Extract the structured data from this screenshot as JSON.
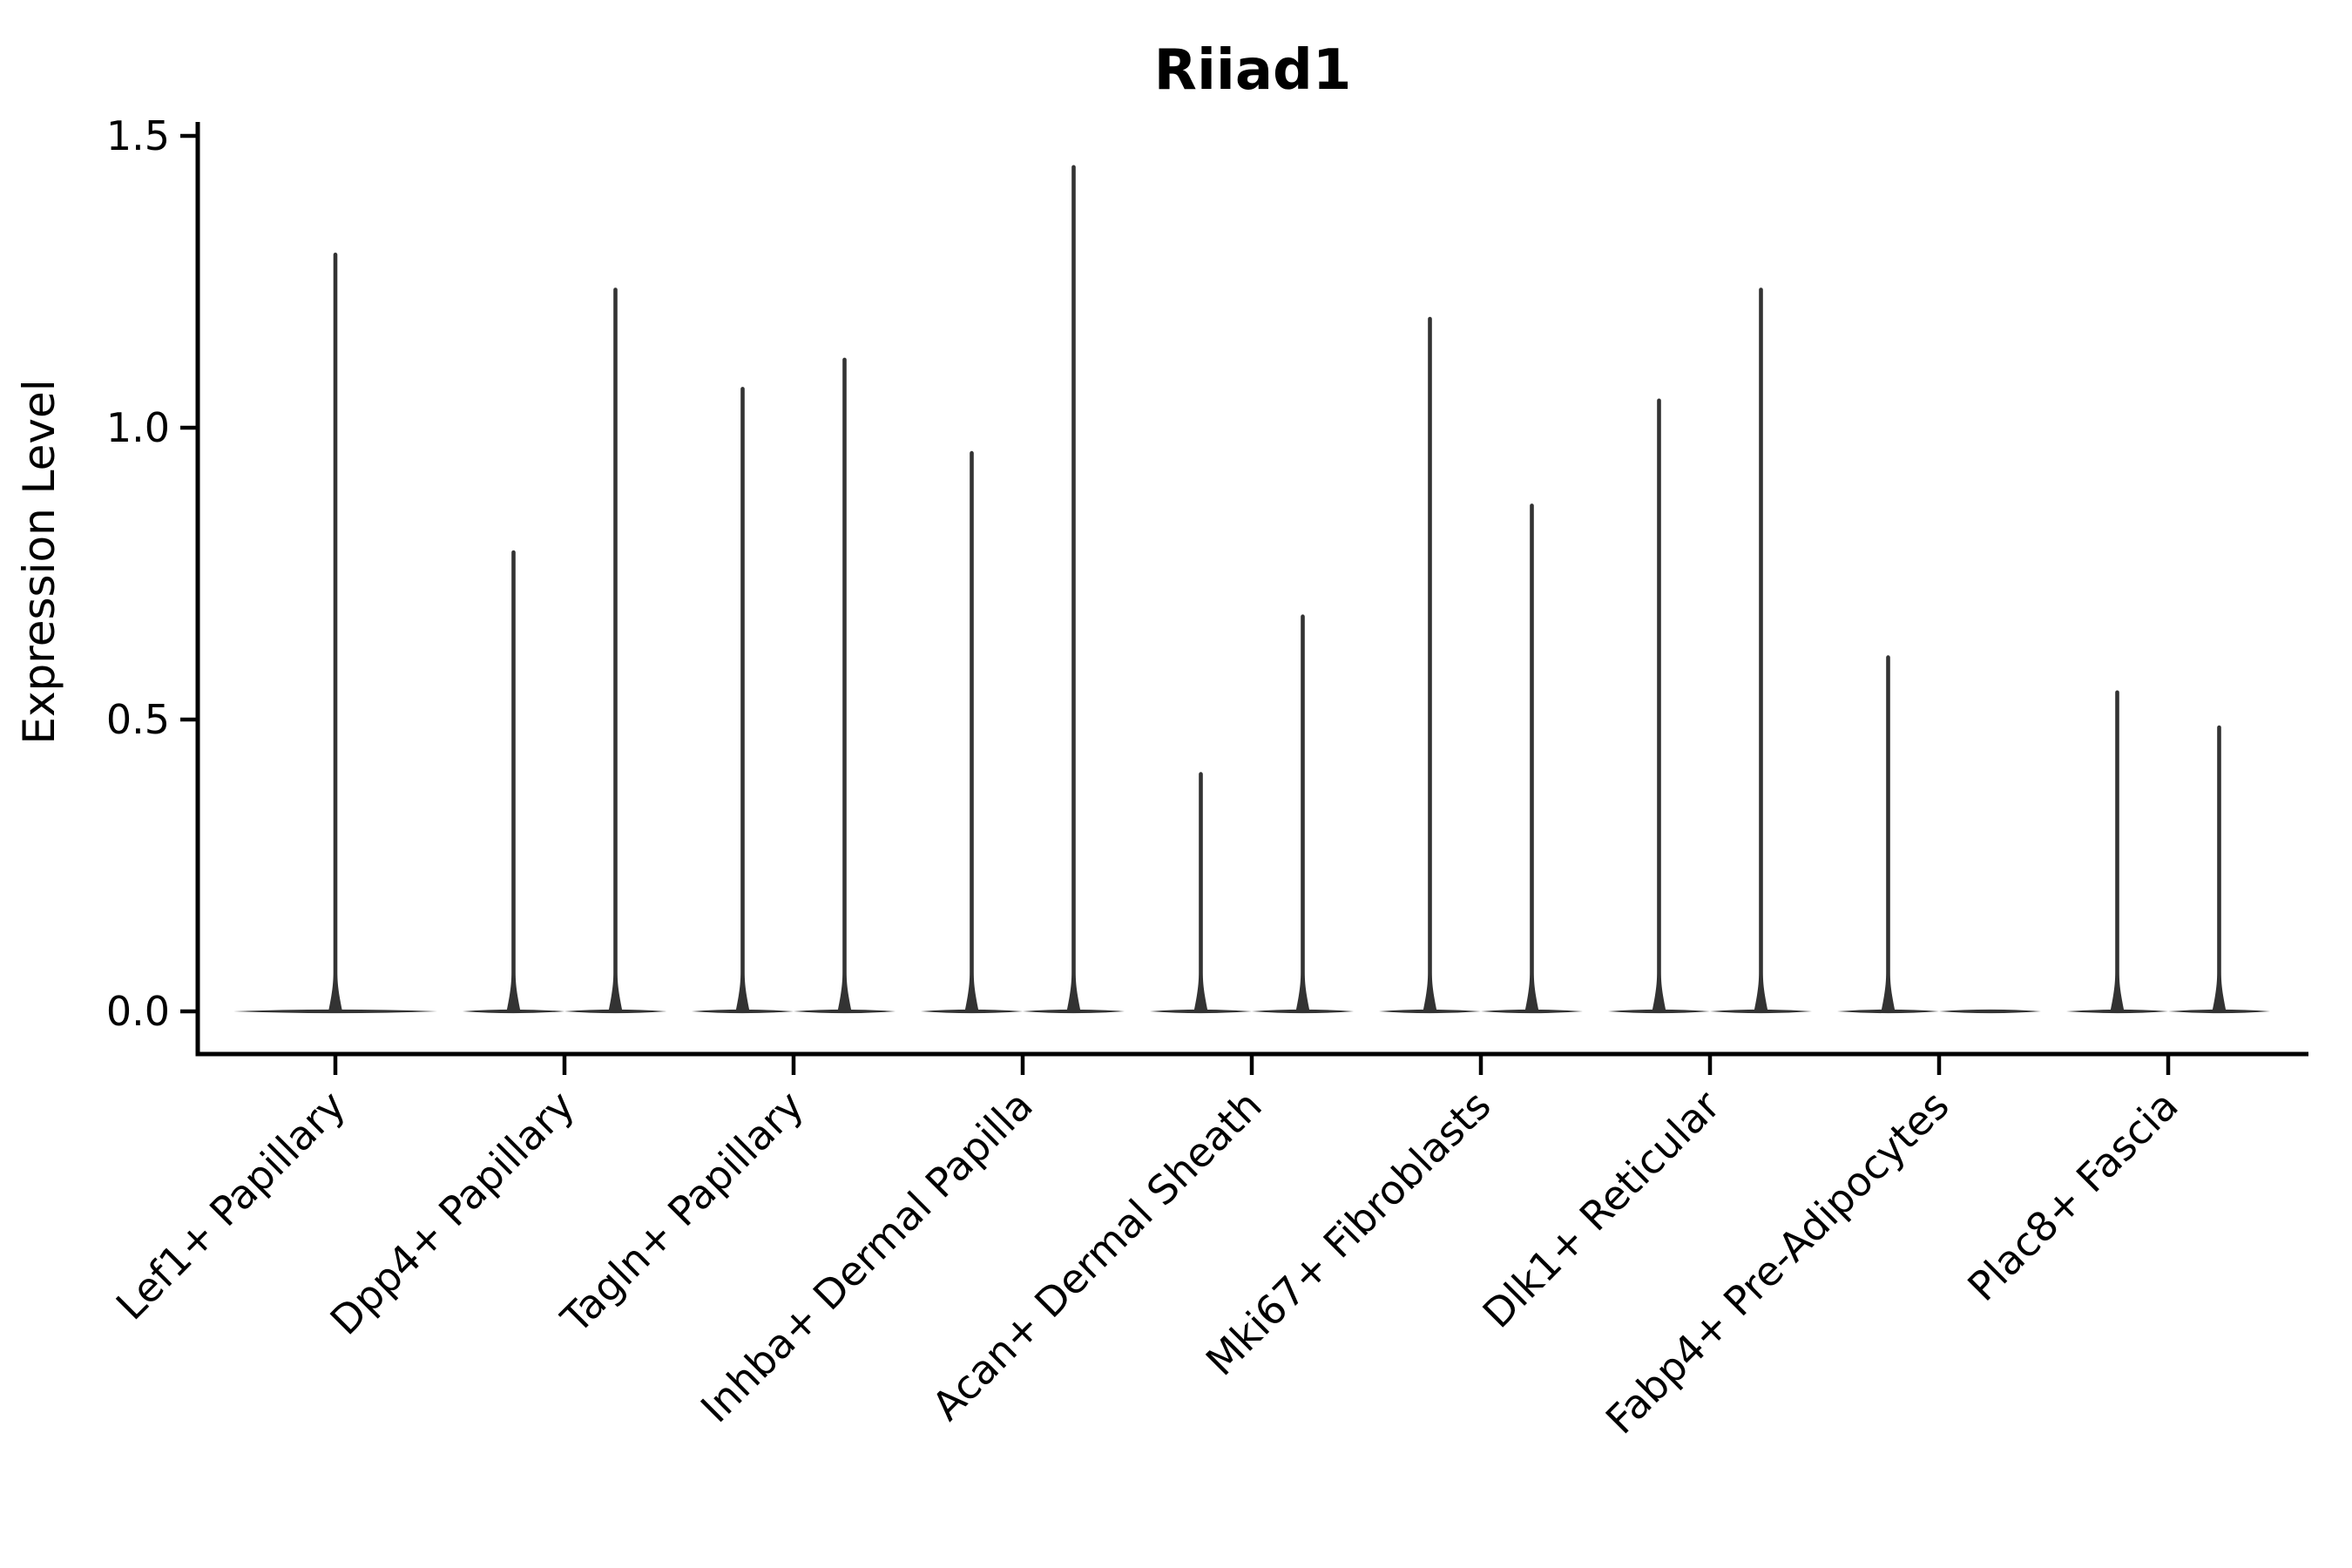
{
  "chart_data": {
    "type": "violin",
    "title": "Riiad1",
    "ylabel": "Expression Level",
    "xlabel": "",
    "ylim": [
      0.0,
      1.5
    ],
    "yticks": [
      0.0,
      0.5,
      1.0,
      1.5
    ],
    "ytick_labels": [
      "0.0",
      "0.5",
      "1.0",
      "1.5"
    ],
    "grid": false,
    "legend": "none",
    "description": "Violin plot of Riiad1 expression; most cells at 0 giving flat violins with thin needle spikes up to the max expression. Categories with two dodged violins have slot left/right; categories with one violin are centered full-width.",
    "categories": [
      {
        "label": "Lef1+ Papillary",
        "violins": [
          {
            "slot": "center",
            "max": 1.3
          }
        ]
      },
      {
        "label": "Dpp4+ Papillary",
        "violins": [
          {
            "slot": "left",
            "max": 0.79
          },
          {
            "slot": "right",
            "max": 1.24
          }
        ]
      },
      {
        "label": "Tagln+ Papillary",
        "violins": [
          {
            "slot": "left",
            "max": 1.07
          },
          {
            "slot": "right",
            "max": 1.12
          }
        ]
      },
      {
        "label": "Inhba+ Dermal Papilla",
        "violins": [
          {
            "slot": "left",
            "max": 0.96
          },
          {
            "slot": "right",
            "max": 1.45
          }
        ]
      },
      {
        "label": "Acan+ Dermal Sheath",
        "violins": [
          {
            "slot": "left",
            "max": 0.41
          },
          {
            "slot": "right",
            "max": 0.68
          }
        ]
      },
      {
        "label": "Mki67+ Fibroblasts",
        "violins": [
          {
            "slot": "left",
            "max": 1.19
          },
          {
            "slot": "right",
            "max": 0.87
          }
        ]
      },
      {
        "label": "Dlk1+ Reticular",
        "violins": [
          {
            "slot": "left",
            "max": 1.05
          },
          {
            "slot": "right",
            "max": 1.24
          }
        ]
      },
      {
        "label": "Fabp4+ Pre-Adipocytes",
        "violins": [
          {
            "slot": "left",
            "max": 0.61
          },
          {
            "slot": "right",
            "max": 0.0
          }
        ]
      },
      {
        "label": "Plac8+ Fascia",
        "violins": [
          {
            "slot": "left",
            "max": 0.55
          },
          {
            "slot": "right",
            "max": 0.49
          }
        ]
      }
    ],
    "colors": {
      "violin": "#333333",
      "axis": "#000000",
      "text": "#000000"
    }
  }
}
